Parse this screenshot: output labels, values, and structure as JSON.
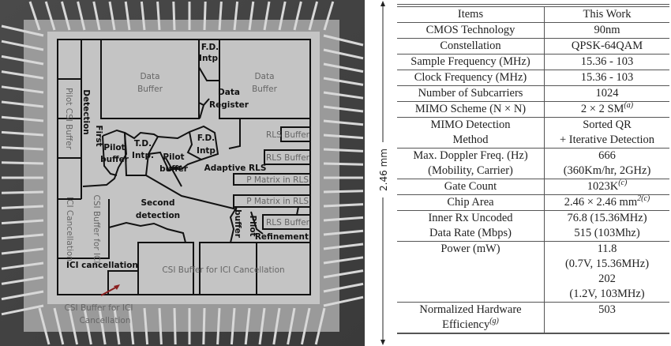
{
  "die_photo": {
    "labels": {
      "data_buffer_1": [
        "Data",
        "Buffer"
      ],
      "fd_intp_top": [
        "F.D.",
        "Intp."
      ],
      "data_register": [
        "Data",
        "Register"
      ],
      "data_buffer_2": [
        "Data",
        "Buffer"
      ],
      "pilot_csi_buffer": "Pilot CSI Buffer",
      "detection": "Detection",
      "first": "First",
      "pilot_buffer_1": [
        "Pilot",
        "buffer"
      ],
      "td_intp": [
        "T.D.",
        "Intp."
      ],
      "pilot_buffer_2": [
        "Pilot",
        "buffer"
      ],
      "fd_intp_mid": [
        "F.D.",
        "Intp"
      ],
      "adaptive_rls": "Adaptive RLS",
      "rls_buffer_1": "RLS Buffer",
      "rls_buffer_2": "RLS Buffer",
      "p_matrix_1": "P Matrix in RLS",
      "p_matrix_2": "P Matrix in RLS",
      "rls_buffer_3": "RLS Buffer",
      "refinement": "Refinement",
      "buffer_v": "buffer",
      "pilot_v": "Pilot",
      "second_detection": [
        "Second",
        "detection"
      ],
      "ici_cancellation_v": "ICI Cancellation",
      "csi_buffer_for_ici_v": "CSI Buffer for ICI",
      "ici_cancellation": "ICI cancellation",
      "csi_buffer_big": "CSI Buffer for ICI Cancellation",
      "csi_buffer_callout": [
        "CSI Buffer for ICI",
        "Cancellation"
      ]
    },
    "dimension_label": "2.46 mm",
    "callout_arrow_color": "#8b2020"
  },
  "table": {
    "header": [
      "Items",
      "This Work"
    ],
    "rows": [
      {
        "item": [
          "CMOS Technology"
        ],
        "value": [
          "90nm"
        ]
      },
      {
        "item": [
          "Constellation"
        ],
        "value": [
          "QPSK-64QAM"
        ]
      },
      {
        "item": [
          "Sample Frequency (MHz)"
        ],
        "value": [
          "15.36 - 103"
        ]
      },
      {
        "item": [
          "Clock Frequency (MHz)"
        ],
        "value": [
          "15.36 - 103"
        ]
      },
      {
        "item": [
          "Number of Subcarriers"
        ],
        "value": [
          "1024"
        ]
      },
      {
        "item": [
          "MIMO Scheme (N × N)"
        ],
        "value": [
          "2 × 2 SM"
        ],
        "value_sup": "(a)"
      },
      {
        "item": [
          "MIMO Detection",
          "Method"
        ],
        "value": [
          "Sorted QR",
          "+ Iterative Detection"
        ]
      },
      {
        "item": [
          "Max. Doppler Freq. (Hz)",
          "(Mobility, Carrier)"
        ],
        "value": [
          "666",
          "(360Km/hr, 2GHz)"
        ]
      },
      {
        "item": [
          "Gate Count"
        ],
        "value": [
          "1023K"
        ],
        "value_sup": "(c)"
      },
      {
        "item": [
          "Chip Area"
        ],
        "value": [
          "2.46 × 2.46 mm"
        ],
        "value_sup": "2(c)"
      },
      {
        "item": [
          "Inner Rx Uncoded",
          "Data Rate (Mbps)"
        ],
        "value": [
          "76.8 (15.36MHz)",
          "515 (103Mhz)"
        ]
      },
      {
        "item": [
          "Power (mW)"
        ],
        "value": [
          "11.8",
          "(0.7V, 15.36MHz)",
          "202",
          "(1.2V, 103MHz)"
        ]
      },
      {
        "item": [
          "Normalized Hardware",
          "Efficiency"
        ],
        "item_sup": "(g)",
        "value": [
          "503"
        ]
      }
    ]
  }
}
